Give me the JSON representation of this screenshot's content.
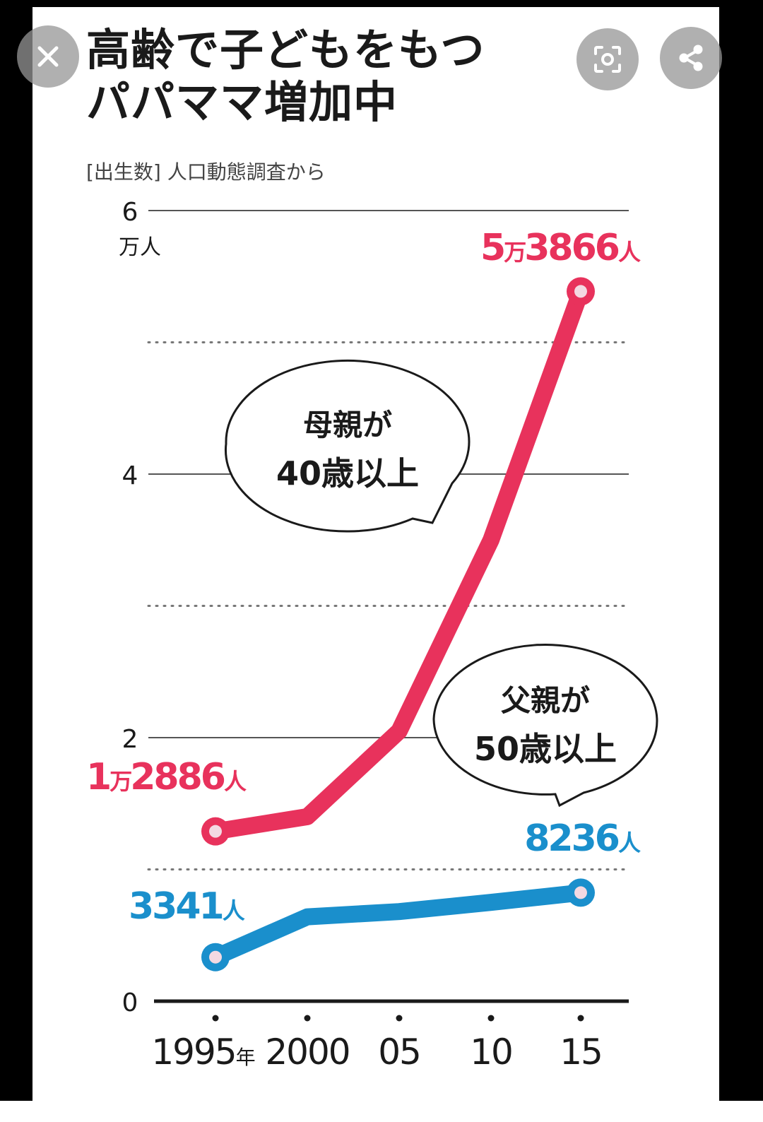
{
  "title_line1": "高齢で子どもをもつ",
  "title_line2": "パパママ増加中",
  "subtitle": "[出生数] 人口動態調査から",
  "colors": {
    "mother": "#e8325c",
    "father": "#1a8fcc",
    "text": "#1a1a1a",
    "grid": "#555555"
  },
  "overlay_buttons": [
    {
      "name": "close-icon"
    },
    {
      "name": "lens-icon"
    },
    {
      "name": "share-icon"
    }
  ],
  "chart_data": {
    "type": "line",
    "categories": [
      "1995",
      "2000",
      "05",
      "10",
      "15"
    ],
    "x_unit": "年",
    "y_unit": "万人",
    "ylim": [
      0,
      6
    ],
    "y_ticks": [
      0,
      2,
      4,
      6
    ],
    "y_minor_ticks": [
      1,
      3,
      5
    ],
    "series": [
      {
        "name": "母親が40歳以上",
        "name_line1": "母親が",
        "name_line2": "40歳以上",
        "color": "#e8325c",
        "values": [
          1.2886,
          1.4,
          2.05,
          3.5,
          5.3866
        ],
        "start_label": {
          "num1": "1",
          "unit1": "万",
          "num2": "2886",
          "unit2": "人"
        },
        "end_label": {
          "num1": "5",
          "unit1": "万",
          "num2": "3866",
          "unit2": "人"
        }
      },
      {
        "name": "父親が50歳以上",
        "name_line1": "父親が",
        "name_line2": "50歳以上",
        "color": "#1a8fcc",
        "values": [
          0.3341,
          0.64,
          0.68,
          0.75,
          0.8236
        ],
        "start_label": {
          "num1": "3341",
          "unit1": "人"
        },
        "end_label": {
          "num1": "8236",
          "unit1": "人"
        }
      }
    ]
  }
}
